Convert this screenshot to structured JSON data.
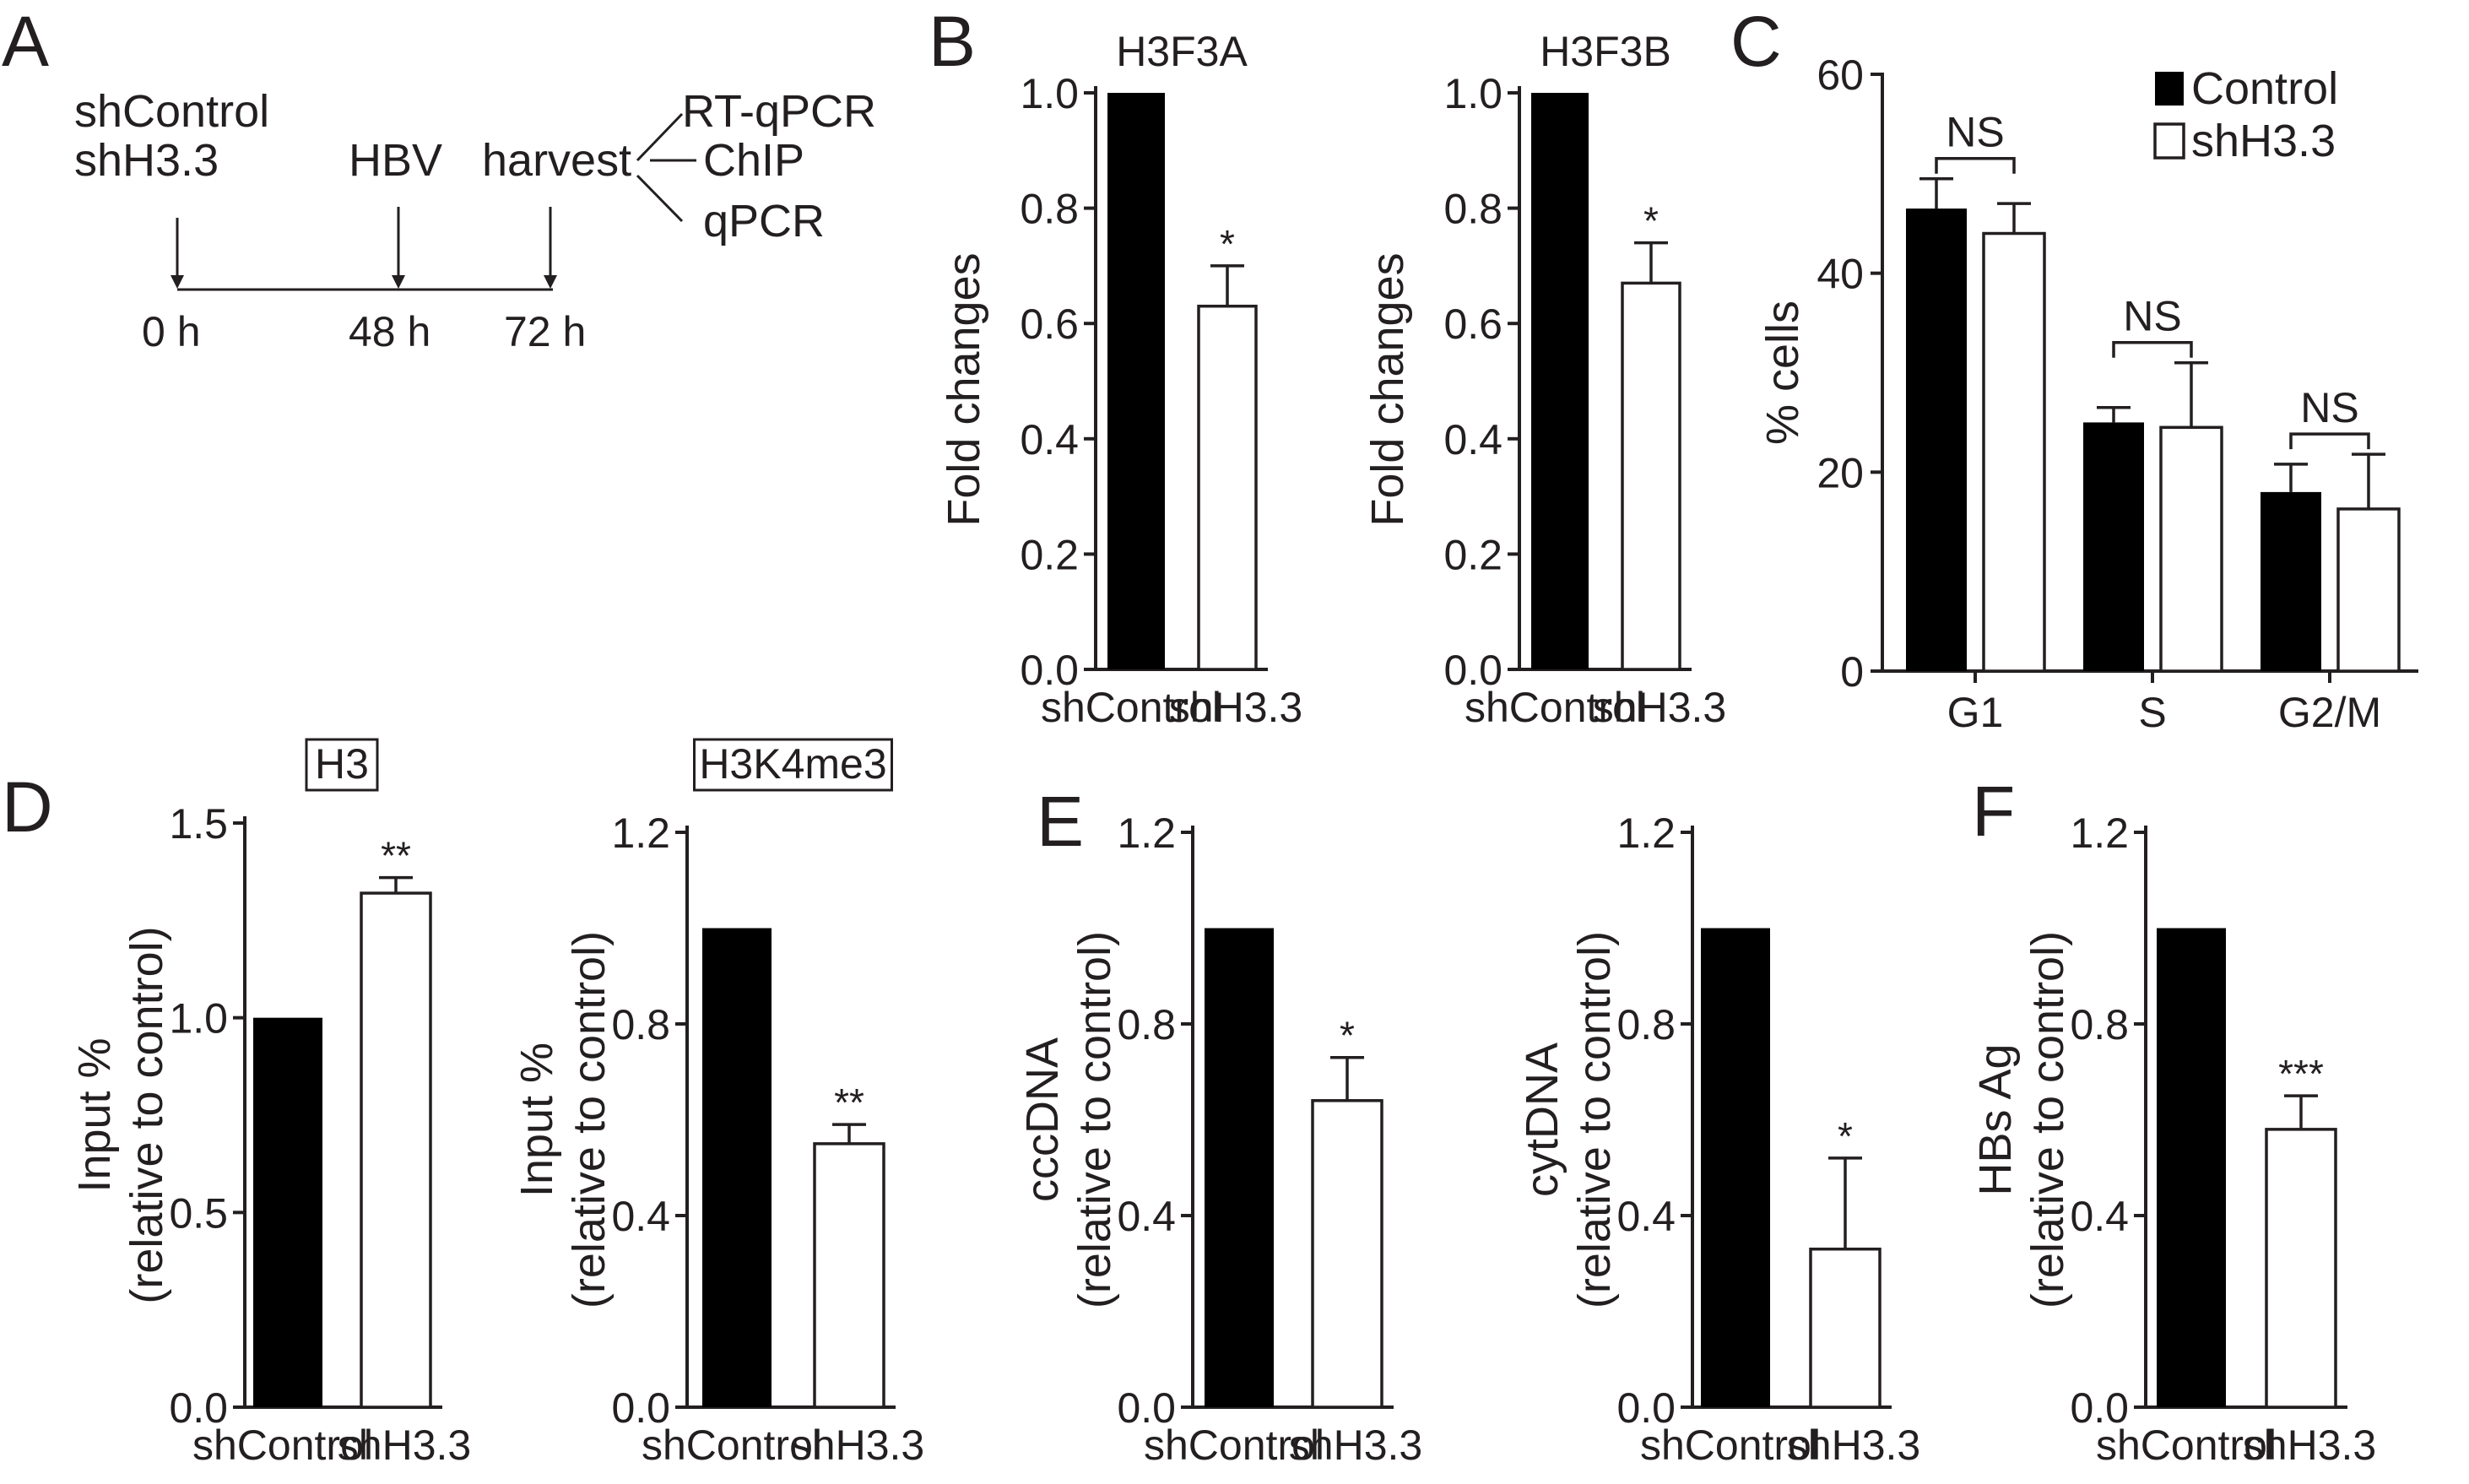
{
  "panels": {
    "A": "A",
    "B": "B",
    "C": "C",
    "D": "D",
    "E": "E",
    "F": "F"
  },
  "timeline": {
    "groups": [
      "shControl",
      "shH3.3"
    ],
    "event_hbv": "HBV",
    "event_harvest": "harvest",
    "assays": [
      "RT-qPCR",
      "ChIP",
      "qPCR"
    ],
    "times": [
      "0 h",
      "48 h",
      "72 h"
    ]
  },
  "chart_data": [
    {
      "id": "B1",
      "type": "bar",
      "title": "H3F3A",
      "ylabel": "Fold changes",
      "categories": [
        "shControl",
        "shH3.3"
      ],
      "values": [
        1.0,
        0.63
      ],
      "errors": [
        0,
        0.07
      ],
      "significance": [
        "",
        "*"
      ],
      "ylim": [
        0,
        1.0
      ],
      "yticks": [
        "0.0",
        "0.2",
        "0.4",
        "0.6",
        "0.8",
        "1.0"
      ]
    },
    {
      "id": "B2",
      "type": "bar",
      "title": "H3F3B",
      "ylabel": "Fold changes",
      "categories": [
        "shControl",
        "shH3.3"
      ],
      "values": [
        1.0,
        0.67
      ],
      "errors": [
        0,
        0.07
      ],
      "significance": [
        "",
        "*"
      ],
      "ylim": [
        0,
        1.0
      ],
      "yticks": [
        "0.0",
        "0.2",
        "0.4",
        "0.6",
        "0.8",
        "1.0"
      ]
    },
    {
      "id": "C",
      "type": "bar",
      "ylabel": "% cells",
      "categories": [
        "G1",
        "S",
        "G2/M"
      ],
      "series": [
        {
          "name": "Control",
          "values": [
            46.5,
            25,
            18
          ],
          "errors": [
            3,
            1.5,
            2.8
          ]
        },
        {
          "name": "shH3.3",
          "values": [
            44,
            24.5,
            16.3
          ],
          "errors": [
            3,
            6.5,
            5.5
          ]
        }
      ],
      "comparisons": [
        "NS",
        "NS",
        "NS"
      ],
      "ylim": [
        0,
        60
      ],
      "yticks": [
        "0",
        "20",
        "40",
        "60"
      ],
      "legend": "top-right"
    },
    {
      "id": "D1",
      "type": "bar",
      "title": "H3",
      "ylabel": "Input %",
      "ylabel2": "(relative to control)",
      "categories": [
        "shControl",
        "shH3.3"
      ],
      "values": [
        1.0,
        1.32
      ],
      "errors": [
        0,
        0.04
      ],
      "significance": [
        "",
        "**"
      ],
      "ylim": [
        0,
        1.5
      ],
      "yticks": [
        "0.0",
        "0.5",
        "1.0",
        "1.5"
      ]
    },
    {
      "id": "D2",
      "type": "bar",
      "title": "H3K4me3",
      "ylabel": "Input %",
      "ylabel2": "(relative to control)",
      "categories": [
        "shControl",
        "shH3.3"
      ],
      "values": [
        1.0,
        0.55
      ],
      "errors": [
        0,
        0.04
      ],
      "significance": [
        "",
        "**"
      ],
      "ylim": [
        0,
        1.2
      ],
      "yticks": [
        "0.0",
        "0.4",
        "0.8",
        "1.2"
      ]
    },
    {
      "id": "E1",
      "type": "bar",
      "ylabel": "cccDNA",
      "ylabel2": "(relative to control)",
      "categories": [
        "shControl",
        "shH3.3"
      ],
      "values": [
        1.0,
        0.64
      ],
      "errors": [
        0,
        0.09
      ],
      "significance": [
        "",
        "*"
      ],
      "ylim": [
        0,
        1.2
      ],
      "yticks": [
        "0.0",
        "0.4",
        "0.8",
        "1.2"
      ]
    },
    {
      "id": "E2",
      "type": "bar",
      "ylabel": "cytDNA",
      "ylabel2": "(relative to control)",
      "categories": [
        "shControl",
        "shH3.3"
      ],
      "values": [
        1.0,
        0.33
      ],
      "errors": [
        0,
        0.19
      ],
      "significance": [
        "",
        "*"
      ],
      "ylim": [
        0,
        1.2
      ],
      "yticks": [
        "0.0",
        "0.4",
        "0.8",
        "1.2"
      ]
    },
    {
      "id": "F",
      "type": "bar",
      "ylabel": "HBs Ag",
      "ylabel2": "(relative to control)",
      "categories": [
        "shControl",
        "shH3.3"
      ],
      "values": [
        1.0,
        0.58
      ],
      "errors": [
        0,
        0.07
      ],
      "significance": [
        "",
        "***"
      ],
      "ylim": [
        0,
        1.2
      ],
      "yticks": [
        "0.0",
        "0.4",
        "0.8",
        "1.2"
      ]
    }
  ]
}
